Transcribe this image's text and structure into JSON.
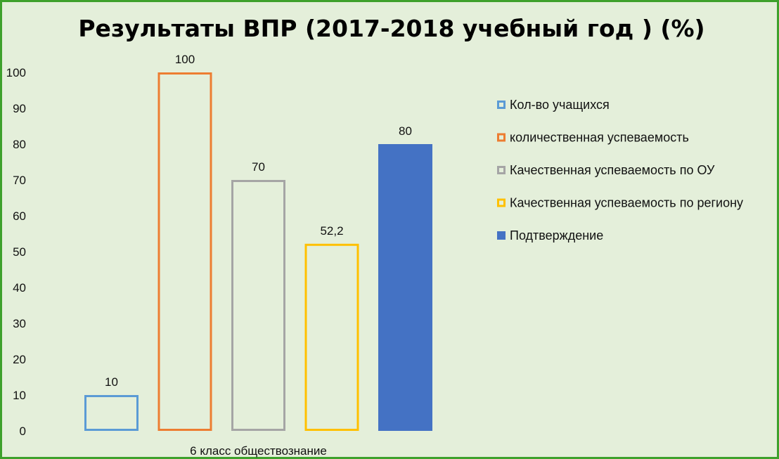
{
  "chart_data": {
    "type": "bar",
    "title": "Результаты ВПР (2017-2018 учебный год ) (%)",
    "categories": [
      "6 класс обществознание"
    ],
    "ylim": [
      0,
      100
    ],
    "yticks": [
      0,
      10,
      20,
      30,
      40,
      50,
      60,
      70,
      80,
      90,
      100
    ],
    "grid": false,
    "legend_position": "right",
    "series": [
      {
        "name": "Кол-во учащихся",
        "values": [
          10
        ],
        "data_label": "10",
        "color": "#5b9bd5",
        "style": "outline"
      },
      {
        "name": "количественная успеваемость",
        "values": [
          100
        ],
        "data_label": "100",
        "color": "#ed7d31",
        "style": "outline"
      },
      {
        "name": "Качественная успеваемость по ОУ",
        "values": [
          70
        ],
        "data_label": "70",
        "color": "#a5a5a5",
        "style": "outline"
      },
      {
        "name": "Качественная успеваемость по региону",
        "values": [
          52.2
        ],
        "data_label": "52,2",
        "color": "#ffc000",
        "style": "outline"
      },
      {
        "name": "Подтверждение",
        "values": [
          80
        ],
        "data_label": "80",
        "color": "#4472c4",
        "style": "filled"
      }
    ]
  },
  "colors": {
    "background": "#e4efda",
    "border": "#3ea12c"
  }
}
